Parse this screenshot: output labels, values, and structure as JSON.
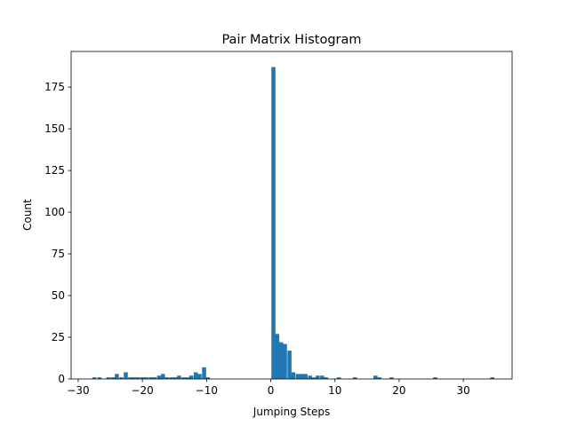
{
  "chart_data": {
    "type": "bar",
    "title": "Pair Matrix Histogram",
    "xlabel": "Jumping Steps",
    "ylabel": "Count",
    "xlim": [
      -31.1,
      37.6
    ],
    "ylim": [
      0,
      196.35
    ],
    "xticks": [
      -30,
      -20,
      -10,
      0,
      10,
      20,
      30
    ],
    "yticks": [
      0,
      25,
      50,
      75,
      100,
      125,
      150,
      175
    ],
    "bin_width": 0.63,
    "color": "#1f77b4",
    "series": [
      {
        "x": [
          -27.8,
          -27.0,
          -25.6,
          -24.9,
          -24.3,
          -23.6,
          -22.9,
          -22.2,
          -21.6,
          -21.0,
          -20.3,
          -19.7,
          -19.0,
          -18.4,
          -17.7,
          -17.1,
          -16.5,
          -15.8,
          -15.2,
          -14.6,
          -13.9,
          -13.3,
          -12.7,
          -12.0,
          -11.4,
          -10.7,
          -10.1,
          0.1,
          0.7,
          1.3,
          1.9,
          2.6,
          3.2,
          3.9,
          4.5,
          5.1,
          5.8,
          6.4,
          7.0,
          7.7,
          8.3,
          10.3,
          12.8,
          16.0,
          16.6,
          18.5,
          25.3,
          34.2
        ],
        "counts": [
          1,
          1,
          1,
          1,
          3,
          1,
          4,
          1,
          1,
          1,
          1,
          1,
          1,
          1,
          2,
          3,
          1,
          1,
          1,
          2,
          1,
          1,
          2,
          4,
          3,
          7,
          1,
          187,
          27,
          22,
          21,
          17,
          4,
          3,
          3,
          3,
          2,
          1,
          2,
          2,
          1,
          1,
          1,
          2,
          1,
          1,
          1,
          1
        ]
      }
    ]
  }
}
